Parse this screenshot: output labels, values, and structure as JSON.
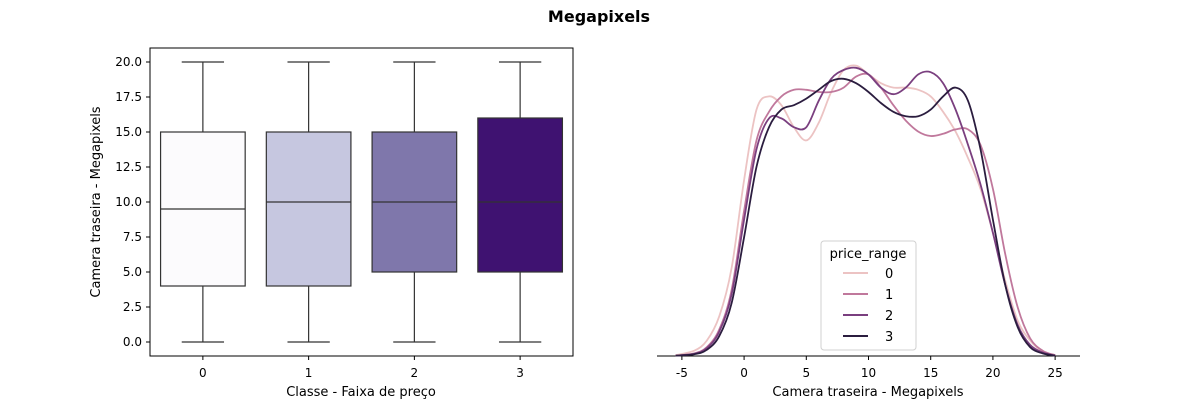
{
  "figure": {
    "suptitle": "Megapixels"
  },
  "chart_data": [
    {
      "type": "box",
      "xlabel": "Classe - Faixa de preço",
      "ylabel": "Camera traseira - Megapixels",
      "categories": [
        "0",
        "1",
        "2",
        "3"
      ],
      "ylim": [
        -1,
        21
      ],
      "yticks": [
        0.0,
        2.5,
        5.0,
        7.5,
        10.0,
        12.5,
        15.0,
        17.5,
        20.0
      ],
      "ytick_labels": [
        "0.0",
        "2.5",
        "5.0",
        "7.5",
        "10.0",
        "12.5",
        "15.0",
        "17.5",
        "20.0"
      ],
      "boxes": [
        {
          "category": "0",
          "min": 0,
          "q1": 4,
          "median": 9.5,
          "q3": 15,
          "max": 20,
          "color": "#fcfbfd"
        },
        {
          "category": "1",
          "min": 0,
          "q1": 4,
          "median": 10,
          "q3": 15,
          "max": 20,
          "color": "#c6c7e0"
        },
        {
          "category": "2",
          "min": 0,
          "q1": 5,
          "median": 10,
          "q3": 15,
          "max": 20,
          "color": "#7f77ab"
        },
        {
          "category": "3",
          "min": 0,
          "q1": 5,
          "median": 10,
          "q3": 16,
          "max": 20,
          "color": "#3f1271"
        }
      ]
    },
    {
      "type": "line",
      "subtype": "kde",
      "xlabel": "Camera traseira - Megapixels",
      "ylabel": "",
      "xlim": [
        -7,
        27
      ],
      "xticks": [
        -5,
        0,
        5,
        10,
        15,
        20,
        25
      ],
      "xtick_labels": [
        "-5",
        "0",
        "5",
        "10",
        "15",
        "20",
        "25"
      ],
      "yaxis_visible": false,
      "density_ylim": [
        0,
        0.07
      ],
      "legend": {
        "title": "price_range",
        "location": "lower center"
      },
      "series": [
        {
          "name": "0",
          "color": "#ecc3c3",
          "x": [
            -5.5,
            -4,
            -3,
            -2,
            -1,
            0,
            1,
            2,
            3,
            4,
            5,
            6,
            7,
            8,
            9,
            10,
            11,
            12,
            13,
            14,
            15,
            16,
            17,
            18,
            19,
            20,
            21,
            22,
            23,
            24,
            25
          ],
          "y": [
            0.0002,
            0.0012,
            0.0035,
            0.009,
            0.02,
            0.04,
            0.056,
            0.059,
            0.057,
            0.052,
            0.049,
            0.053,
            0.06,
            0.065,
            0.066,
            0.064,
            0.062,
            0.061,
            0.061,
            0.0605,
            0.059,
            0.0555,
            0.051,
            0.045,
            0.038,
            0.028,
            0.017,
            0.008,
            0.0035,
            0.001,
            0.0002
          ]
        },
        {
          "name": "1",
          "color": "#c0789c",
          "x": [
            -5.5,
            -4,
            -3,
            -2,
            -1,
            0,
            1,
            2,
            3,
            4,
            5,
            6,
            7,
            8,
            9,
            10,
            11,
            12,
            13,
            14,
            15,
            16,
            17,
            18,
            19,
            20,
            21,
            22,
            23,
            24,
            25
          ],
          "y": [
            0.0001,
            0.0006,
            0.002,
            0.006,
            0.015,
            0.033,
            0.049,
            0.0555,
            0.059,
            0.0605,
            0.0605,
            0.06,
            0.06,
            0.061,
            0.0635,
            0.064,
            0.061,
            0.057,
            0.0535,
            0.051,
            0.05,
            0.0505,
            0.0515,
            0.0515,
            0.048,
            0.038,
            0.023,
            0.011,
            0.004,
            0.0012,
            0.0002
          ]
        },
        {
          "name": "2",
          "color": "#7a3f7f",
          "x": [
            -5.5,
            -4,
            -3,
            -2,
            -1,
            0,
            1,
            2,
            3,
            4,
            5,
            6,
            7,
            8,
            9,
            10,
            11,
            12,
            13,
            14,
            15,
            16,
            17,
            18,
            19,
            20,
            21,
            22,
            23,
            24,
            25
          ],
          "y": [
            0.0001,
            0.0005,
            0.0018,
            0.0055,
            0.014,
            0.031,
            0.047,
            0.054,
            0.054,
            0.052,
            0.052,
            0.058,
            0.063,
            0.065,
            0.0655,
            0.064,
            0.061,
            0.0595,
            0.061,
            0.064,
            0.0645,
            0.062,
            0.056,
            0.048,
            0.039,
            0.028,
            0.016,
            0.007,
            0.0025,
            0.0008,
            0.0001
          ]
        },
        {
          "name": "3",
          "color": "#2b1d3f",
          "x": [
            -5.5,
            -4,
            -3,
            -2,
            -1,
            0,
            1,
            2,
            3,
            4,
            5,
            6,
            7,
            8,
            9,
            10,
            11,
            12,
            13,
            14,
            15,
            16,
            17,
            18,
            19,
            20,
            21,
            22,
            23,
            24,
            25
          ],
          "y": [
            0.0001,
            0.0004,
            0.0014,
            0.0045,
            0.012,
            0.027,
            0.043,
            0.052,
            0.056,
            0.057,
            0.0585,
            0.0605,
            0.0625,
            0.063,
            0.062,
            0.06,
            0.0575,
            0.0555,
            0.0545,
            0.0545,
            0.056,
            0.059,
            0.061,
            0.058,
            0.047,
            0.031,
            0.016,
            0.0065,
            0.002,
            0.0006,
            0.0001
          ]
        }
      ]
    }
  ]
}
